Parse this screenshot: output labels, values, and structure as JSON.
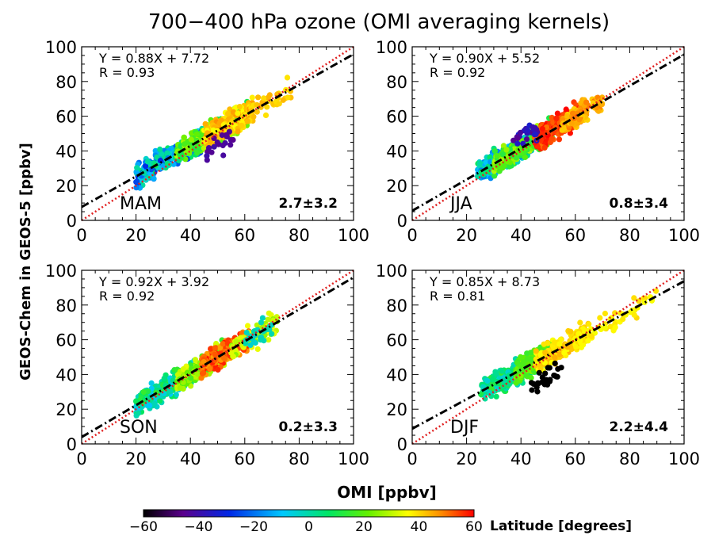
{
  "chart_data": {
    "type": "scatter",
    "title": "700−400 hPa ozone (OMI averaging kernels)",
    "xlabel": "OMI [ppbv]",
    "ylabel": "GEOS-Chem in GEOS-5 [ppbv]",
    "xlim": [
      0,
      100
    ],
    "ylim": [
      0,
      100
    ],
    "xticks": [
      "0",
      "20",
      "40",
      "60",
      "80",
      "100"
    ],
    "yticks": [
      "0",
      "20",
      "40",
      "60",
      "80",
      "100"
    ],
    "one_to_one_color": "#e02020",
    "fit_line_color": "#000000",
    "colorbar": {
      "label": "Latitude [degrees]",
      "min": -60,
      "max": 60,
      "ticks": [
        "−60",
        "−40",
        "−20",
        "0",
        "20",
        "40",
        "60"
      ]
    },
    "panels": [
      {
        "season": "MAM",
        "slope": 0.88,
        "intercept": 7.72,
        "fit_text": "Y = 0.88X + 7.72",
        "r_text": "R = 0.93",
        "bias_text": "2.7±3.2",
        "clusters": [
          {
            "xr": [
              20,
              45
            ],
            "lat": [
              -30,
              10
            ],
            "n": 320
          },
          {
            "xr": [
              35,
              62
            ],
            "lat": [
              10,
              30
            ],
            "n": 300
          },
          {
            "xr": [
              45,
              63
            ],
            "lat": [
              35,
              48
            ],
            "n": 200
          },
          {
            "xr": [
              58,
              78
            ],
            "lat": [
              38,
              44
            ],
            "n": 40
          },
          {
            "xr": [
              46,
              56
            ],
            "lat": [
              -45,
              -40
            ],
            "n": 20,
            "dy": -8
          }
        ]
      },
      {
        "season": "JJA",
        "slope": 0.9,
        "intercept": 5.52,
        "fit_text": "Y = 0.90X + 5.52",
        "r_text": "R = 0.92",
        "bias_text": "0.8±3.4",
        "clusters": [
          {
            "xr": [
              24,
              45
            ],
            "lat": [
              -20,
              10
            ],
            "n": 300
          },
          {
            "xr": [
              30,
              52
            ],
            "lat": [
              10,
              30
            ],
            "n": 220
          },
          {
            "xr": [
              45,
              62
            ],
            "lat": [
              50,
              60
            ],
            "n": 260
          },
          {
            "xr": [
              55,
              70
            ],
            "lat": [
              40,
              50
            ],
            "n": 100
          },
          {
            "xr": [
              37,
              46
            ],
            "lat": [
              -45,
              -30
            ],
            "n": 25,
            "dy": 6
          }
        ]
      },
      {
        "season": "SON",
        "slope": 0.92,
        "intercept": 3.92,
        "fit_text": "Y = 0.92X + 3.92",
        "r_text": "R = 0.92",
        "bias_text": "0.2±3.3",
        "clusters": [
          {
            "xr": [
              20,
              42
            ],
            "lat": [
              -10,
              15
            ],
            "n": 300
          },
          {
            "xr": [
              35,
              55
            ],
            "lat": [
              15,
              35
            ],
            "n": 250
          },
          {
            "xr": [
              44,
              62
            ],
            "lat": [
              45,
              58
            ],
            "n": 220
          },
          {
            "xr": [
              55,
              72
            ],
            "lat": [
              25,
              35
            ],
            "n": 80
          },
          {
            "xr": [
              60,
              70
            ],
            "lat": [
              -5,
              0
            ],
            "n": 25
          }
        ]
      },
      {
        "season": "DJF",
        "slope": 0.85,
        "intercept": 8.73,
        "fit_text": "Y = 0.85X + 8.73",
        "r_text": "R = 0.81",
        "bias_text": "2.2±4.4",
        "clusters": [
          {
            "xr": [
              25,
              48
            ],
            "lat": [
              -5,
              15
            ],
            "n": 320
          },
          {
            "xr": [
              38,
              55
            ],
            "lat": [
              15,
              25
            ],
            "n": 220
          },
          {
            "xr": [
              45,
              65
            ],
            "lat": [
              35,
              45
            ],
            "n": 200
          },
          {
            "xr": [
              60,
              90
            ],
            "lat": [
              35,
              40
            ],
            "n": 60
          },
          {
            "xr": [
              43,
              55
            ],
            "lat": [
              -65,
              -60
            ],
            "n": 25,
            "dy": -12
          }
        ]
      }
    ]
  }
}
